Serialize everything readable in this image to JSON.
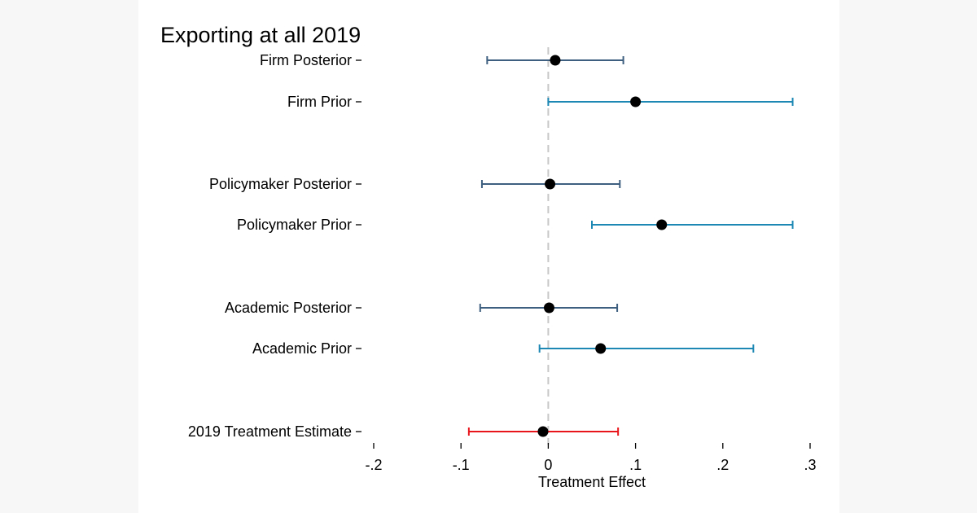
{
  "chart_data": {
    "type": "coefficient-plot",
    "title": "Exporting at all 2019",
    "xlabel": "Treatment Effect",
    "ylabel": "",
    "xlim": [
      -0.2,
      0.3
    ],
    "xticks": [
      -0.2,
      -0.1,
      0,
      0.1,
      0.2,
      0.3
    ],
    "xtick_labels": [
      "-.2",
      "-.1",
      "0",
      ".1",
      ".2",
      ".3"
    ],
    "reference_line": {
      "x": 0,
      "style": "dashed",
      "color": "#c8c8c8"
    },
    "grid": false,
    "rows": [
      {
        "label": "Firm Posterior",
        "estimate": 0.008,
        "ci": [
          -0.07,
          0.086
        ],
        "color": "#3e5f7f"
      },
      {
        "label": "Firm Prior",
        "estimate": 0.1,
        "ci": [
          0.0,
          0.28
        ],
        "color": "#1e88b4"
      },
      {
        "label": "Policymaker Posterior",
        "estimate": 0.002,
        "ci": [
          -0.076,
          0.082
        ],
        "color": "#3e5f7f"
      },
      {
        "label": "Policymaker Prior",
        "estimate": 0.13,
        "ci": [
          0.05,
          0.28
        ],
        "color": "#1e88b4"
      },
      {
        "label": "Academic Posterior",
        "estimate": 0.001,
        "ci": [
          -0.078,
          0.079
        ],
        "color": "#3e5f7f"
      },
      {
        "label": "Academic Prior",
        "estimate": 0.06,
        "ci": [
          -0.01,
          0.235
        ],
        "color": "#1e88b4"
      },
      {
        "label": "2019 Treatment Estimate",
        "estimate": -0.006,
        "ci": [
          -0.091,
          0.08
        ],
        "color": "#e8151b"
      }
    ]
  }
}
